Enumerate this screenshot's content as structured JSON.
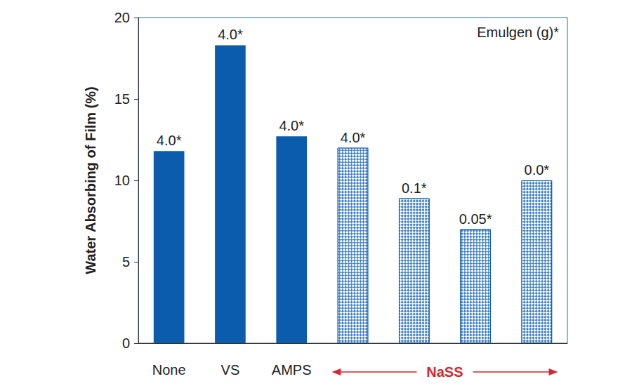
{
  "chart_data": {
    "type": "bar",
    "y_label": "Water Absorbing of Film (%)",
    "categories": [
      "None",
      "VS",
      "AMPS",
      null,
      null,
      null,
      null
    ],
    "values": [
      11.8,
      18.3,
      12.7,
      12.0,
      8.9,
      7.0,
      10.0
    ],
    "bar_labels": [
      "4.0*",
      "4.0*",
      "4.0*",
      "4.0*",
      "0.1*",
      "0.05*",
      "0.0*"
    ],
    "color": "#0b5cad",
    "category_groups": [
      {
        "label": "NaSS",
        "from": 3,
        "to": 6,
        "color": "#d9252e"
      }
    ],
    "annotations": [
      {
        "text": "Emulgen (g)*"
      }
    ],
    "ylim": [
      0,
      20
    ],
    "yticks": [
      0,
      5,
      10,
      15,
      20
    ],
    "grid": false,
    "data_labels": false
  }
}
